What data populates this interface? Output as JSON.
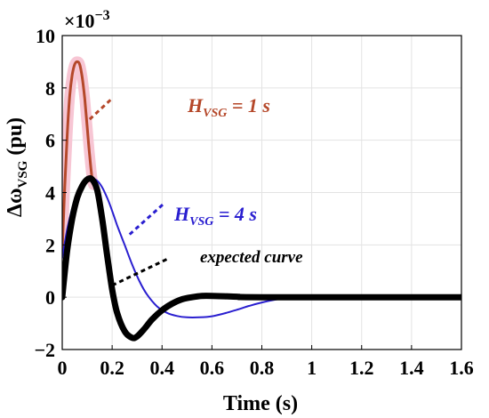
{
  "chart_data": {
    "type": "line",
    "x_axis": {
      "label": "Time (s)",
      "lim": [
        0,
        1.6
      ],
      "ticks": [
        0,
        0.2,
        0.4,
        0.6,
        0.8,
        1,
        1.2,
        1.4,
        1.6
      ],
      "tick_labels": [
        "0",
        "0.2",
        "0.4",
        "0.6",
        "0.8",
        "1",
        "1.2",
        "1.4",
        "1.6"
      ]
    },
    "y_axis": {
      "label_main": "Δω",
      "label_sub": "VSG",
      "label_tail": " (pu)",
      "lim": [
        -2,
        10
      ],
      "ticks": [
        -2,
        0,
        2,
        4,
        6,
        8,
        10
      ],
      "tick_labels": [
        "−2",
        "0",
        "2",
        "4",
        "6",
        "8",
        "10"
      ],
      "exponent_base": "×10",
      "exponent": "−3"
    },
    "grid": true,
    "series": [
      {
        "color": "#b5482a",
        "points": [
          [
            0,
            1.8
          ],
          [
            0.01,
            4.2
          ],
          [
            0.02,
            6.2
          ],
          [
            0.03,
            7.7
          ],
          [
            0.04,
            8.5
          ],
          [
            0.05,
            8.9
          ],
          [
            0.06,
            9.0
          ],
          [
            0.07,
            8.9
          ],
          [
            0.08,
            8.4
          ],
          [
            0.09,
            7.6
          ],
          [
            0.1,
            6.5
          ],
          [
            0.11,
            5.4
          ],
          [
            0.12,
            4.5
          ],
          [
            0.125,
            4.3
          ]
        ]
      },
      {
        "color": "#2a1fd0",
        "points": [
          [
            0,
            1.5
          ],
          [
            0.02,
            2.6
          ],
          [
            0.04,
            3.4
          ],
          [
            0.06,
            4.0
          ],
          [
            0.08,
            4.35
          ],
          [
            0.1,
            4.5
          ],
          [
            0.12,
            4.55
          ],
          [
            0.14,
            4.45
          ],
          [
            0.16,
            4.2
          ],
          [
            0.18,
            3.8
          ],
          [
            0.2,
            3.3
          ],
          [
            0.22,
            2.75
          ],
          [
            0.25,
            2.0
          ],
          [
            0.28,
            1.25
          ],
          [
            0.31,
            0.6
          ],
          [
            0.34,
            0.1
          ],
          [
            0.38,
            -0.35
          ],
          [
            0.42,
            -0.6
          ],
          [
            0.46,
            -0.72
          ],
          [
            0.5,
            -0.77
          ],
          [
            0.55,
            -0.77
          ],
          [
            0.6,
            -0.73
          ],
          [
            0.65,
            -0.62
          ],
          [
            0.7,
            -0.48
          ],
          [
            0.75,
            -0.33
          ],
          [
            0.8,
            -0.2
          ],
          [
            0.85,
            -0.1
          ],
          [
            0.9,
            -0.04
          ],
          [
            0.95,
            0
          ],
          [
            1.0,
            0.02
          ],
          [
            1.1,
            0.01
          ],
          [
            1.6,
            0
          ]
        ]
      },
      {
        "color": "#000000",
        "points": [
          [
            0,
            0
          ],
          [
            0.02,
            1.8
          ],
          [
            0.04,
            3.0
          ],
          [
            0.06,
            3.8
          ],
          [
            0.08,
            4.25
          ],
          [
            0.1,
            4.5
          ],
          [
            0.12,
            4.5
          ],
          [
            0.14,
            4.1
          ],
          [
            0.16,
            3.0
          ],
          [
            0.18,
            1.6
          ],
          [
            0.2,
            0.3
          ],
          [
            0.22,
            -0.6
          ],
          [
            0.25,
            -1.3
          ],
          [
            0.28,
            -1.55
          ],
          [
            0.3,
            -1.5
          ],
          [
            0.33,
            -1.2
          ],
          [
            0.36,
            -0.85
          ],
          [
            0.4,
            -0.5
          ],
          [
            0.44,
            -0.25
          ],
          [
            0.48,
            -0.08
          ],
          [
            0.52,
            0
          ],
          [
            0.56,
            0.05
          ],
          [
            0.6,
            0.05
          ],
          [
            0.7,
            0.02
          ],
          [
            0.8,
            0
          ],
          [
            1.6,
            0
          ]
        ]
      }
    ],
    "annotations": [
      {
        "text_main": "H",
        "text_sub": "VSG",
        "text_tail": " = 1 s",
        "color": "#b5482a",
        "line_from": [
          0.11,
          6.8
        ],
        "line_to": [
          0.2,
          7.6
        ]
      },
      {
        "text_main": "H",
        "text_sub": "VSG",
        "text_tail": " = 4 s",
        "color": "#2a1fd0",
        "line_from": [
          0.27,
          2.4
        ],
        "line_to": [
          0.41,
          3.6
        ]
      },
      {
        "text": "expected curve",
        "color": "#000000",
        "line_from": [
          0.2,
          0.45
        ],
        "line_to": [
          0.43,
          1.5
        ]
      }
    ]
  }
}
